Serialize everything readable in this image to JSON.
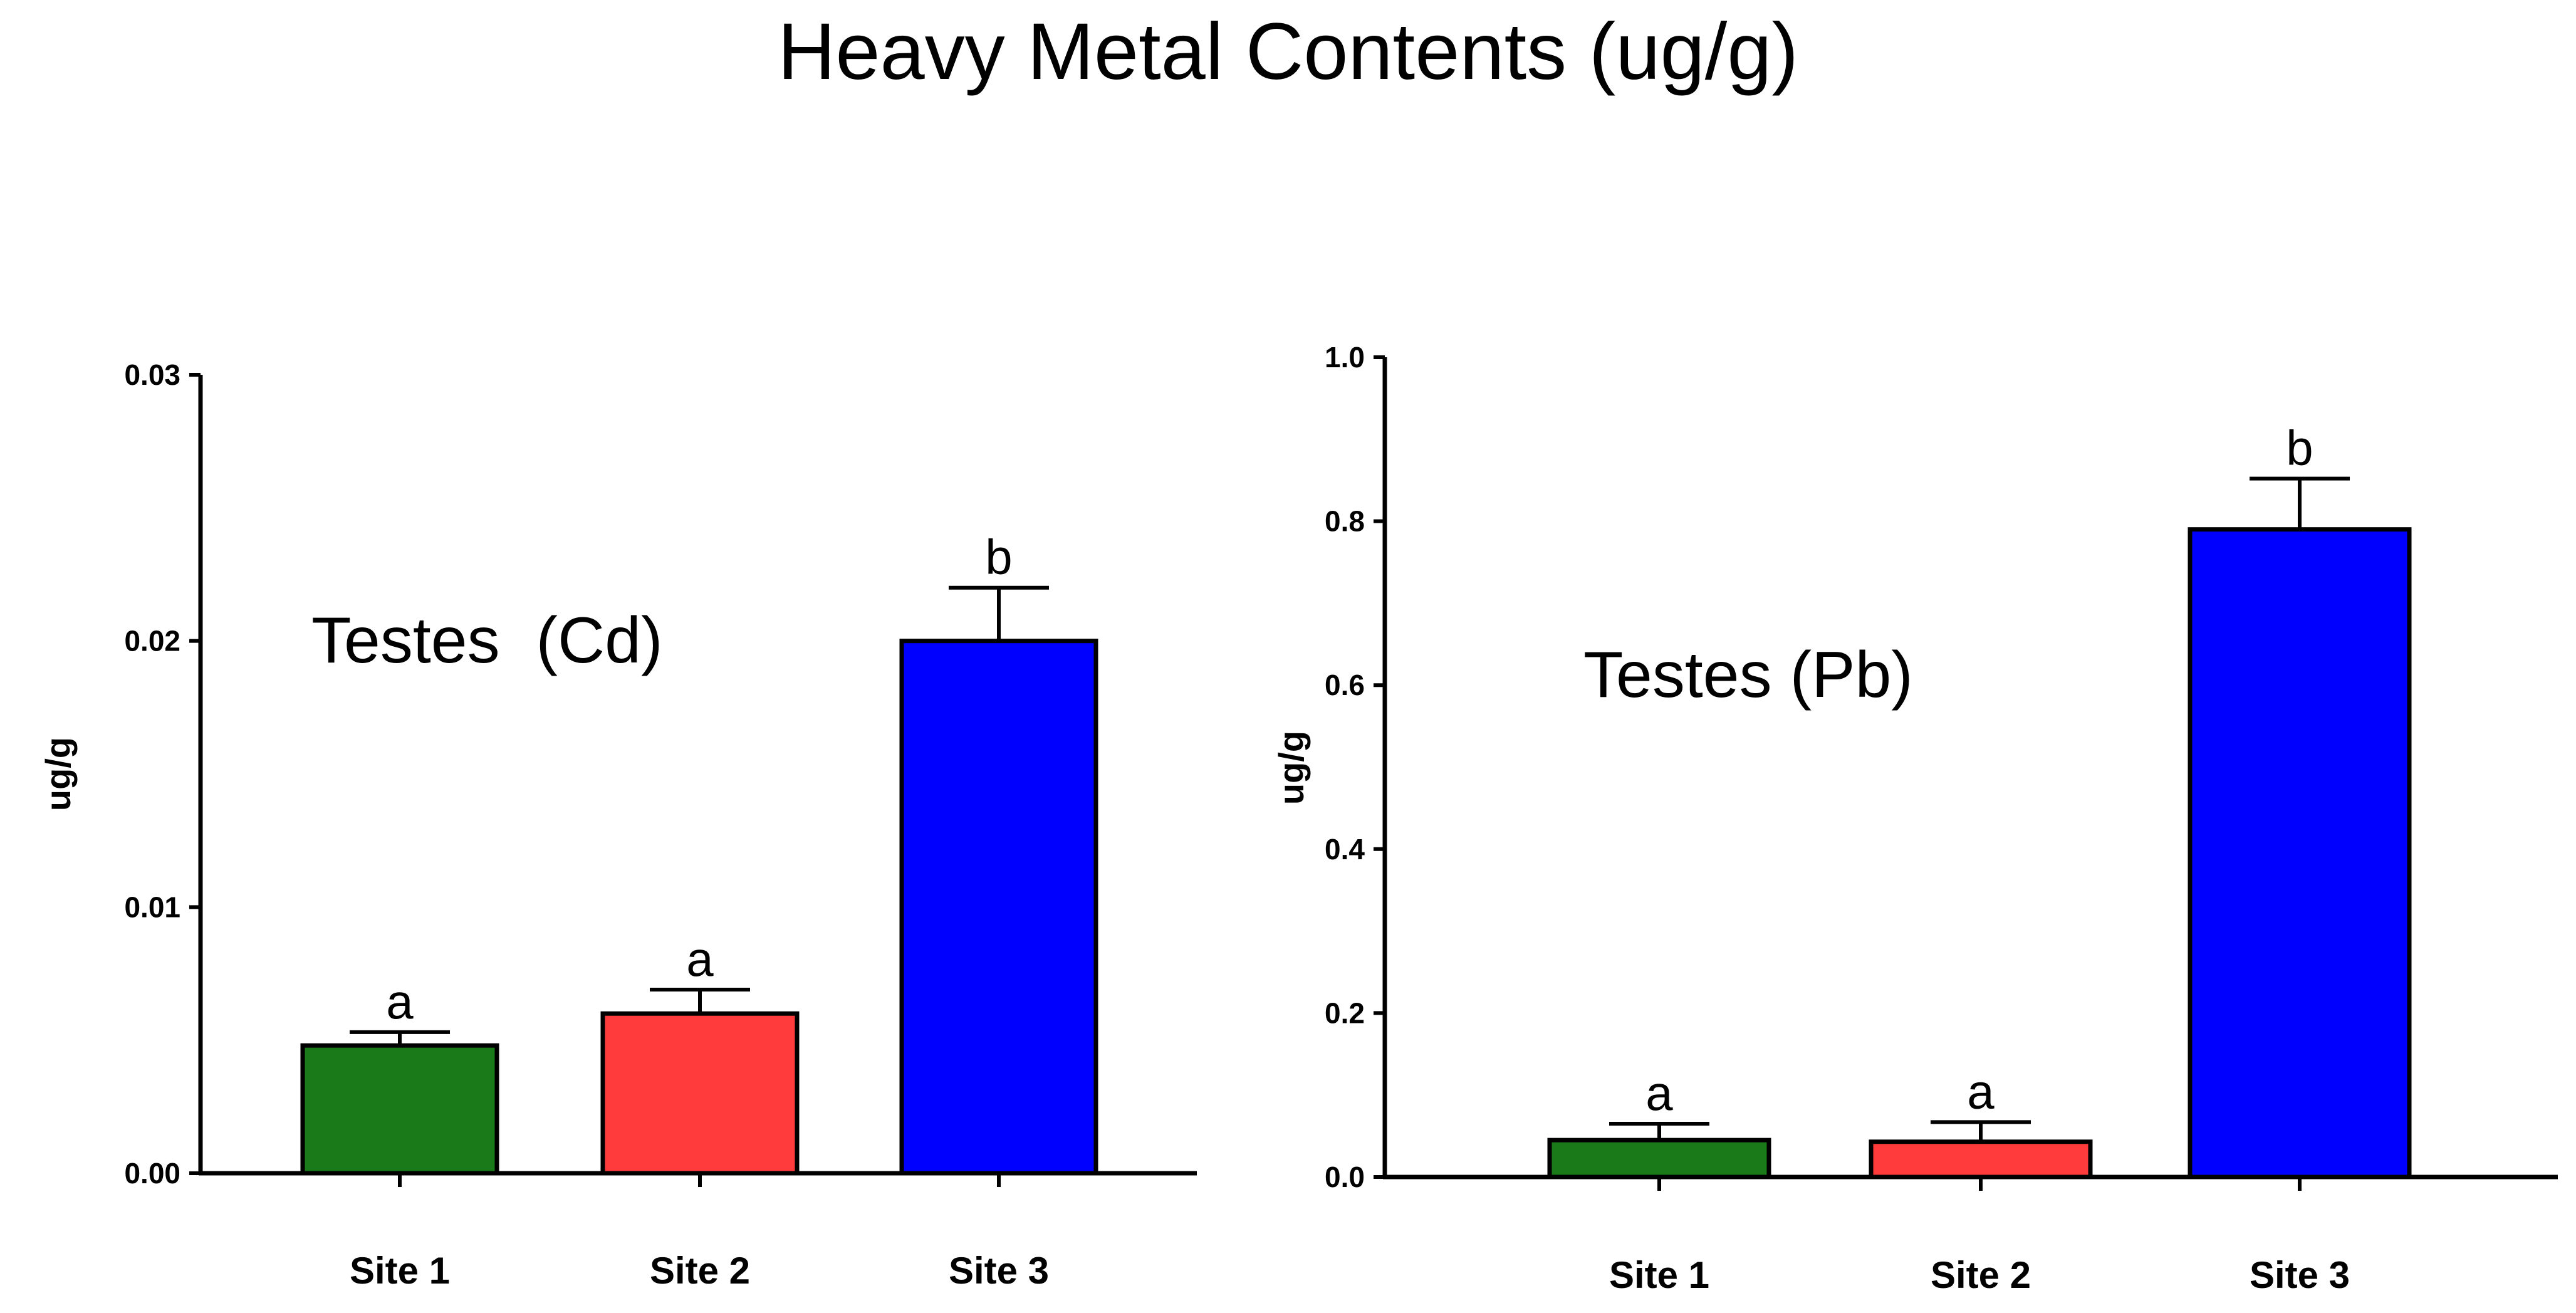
{
  "title": "Heavy Metal Contents (ug/g)",
  "colors": {
    "site1": "#1a7a1a",
    "site2": "#ff3b3b",
    "site3": "#0000ff",
    "axis": "#000000"
  },
  "chart_data": [
    {
      "type": "bar",
      "title": "Testes  (Cd)",
      "ylabel": "ug/g",
      "xlabel": "",
      "categories": [
        "Site 1",
        "Site 2",
        "Site 3"
      ],
      "values": [
        0.0048,
        0.006,
        0.02
      ],
      "errors": [
        0.0005,
        0.0009,
        0.002
      ],
      "significance": [
        "a",
        "a",
        "b"
      ],
      "ylim": [
        0,
        0.03
      ],
      "yticks": [
        0,
        0.01,
        0.02,
        0.03
      ],
      "ytick_labels": [
        "0.00",
        "0.01",
        "0.02",
        "0.03"
      ],
      "grid": false
    },
    {
      "type": "bar",
      "title": "Testes (Pb)",
      "ylabel": "ug/g",
      "xlabel": "",
      "categories": [
        "Site 1",
        "Site 2",
        "Site 3"
      ],
      "values": [
        0.045,
        0.043,
        0.79
      ],
      "errors": [
        0.02,
        0.024,
        0.062
      ],
      "significance": [
        "a",
        "a",
        "b"
      ],
      "ylim": [
        0,
        1.0
      ],
      "yticks": [
        0,
        0.2,
        0.4,
        0.6,
        0.8,
        1.0
      ],
      "ytick_labels": [
        "0.0",
        "0.2",
        "0.4",
        "0.6",
        "0.8",
        "1.0"
      ],
      "grid": false
    }
  ]
}
